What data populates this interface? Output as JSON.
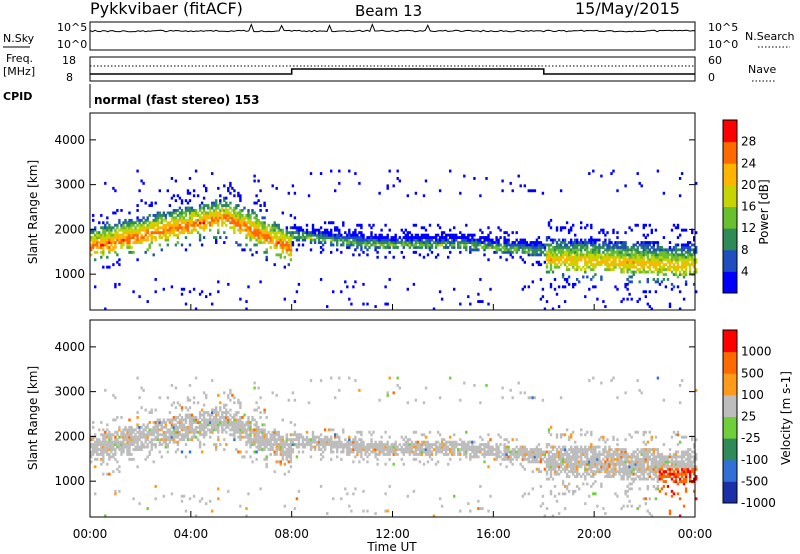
{
  "header": {
    "title": "Pykkvibaer (fitACF)",
    "beam": "Beam 13",
    "date": "15/May/2015"
  },
  "noise_panel": {
    "left_label": "N.Sky",
    "right_label": "N.Search",
    "left_ticks": [
      "10^5",
      "10^0"
    ],
    "right_ticks": [
      "10^5",
      "10^0"
    ]
  },
  "freq_panel": {
    "left_label_1": "Freq.",
    "left_label_2": "[MHz]",
    "left_ticks": [
      "18",
      "8"
    ],
    "right_ticks": [
      "60",
      "0"
    ],
    "right_label": "Nave"
  },
  "cpid_panel": {
    "label": "CPID",
    "text": "normal (fast stereo) 153"
  },
  "axes": {
    "x_label": "Time UT",
    "x_ticks": [
      "00:00",
      "04:00",
      "08:00",
      "12:00",
      "16:00",
      "20:00",
      "00:00"
    ],
    "y_label": "Slant Range [km]",
    "y_ticks": [
      "1000",
      "2000",
      "3000",
      "4000"
    ],
    "y_range_km": [
      200,
      4600
    ]
  },
  "chart_data": [
    {
      "type": "heatmap",
      "parameter": "power",
      "ylabel": "Slant Range [km]",
      "colorbar": {
        "label": "Power [dB]",
        "ticks": [
          "4",
          "8",
          "12",
          "16",
          "20",
          "24",
          "28"
        ],
        "range": [
          0,
          32
        ]
      },
      "bands": [
        {
          "t": [
            0.0,
            8.0
          ],
          "center_km": [
            1700,
            2050,
            2350,
            1650
          ],
          "thickness_km": 600,
          "peak_db": 26
        },
        {
          "t": [
            8.0,
            18.0
          ],
          "center_km": [
            1900,
            1700,
            1700,
            1550
          ],
          "thickness_km": 350,
          "peak_db": 14
        },
        {
          "t": [
            18.0,
            24.0
          ],
          "center_km": [
            1450,
            1400,
            1350,
            1300
          ],
          "thickness_km": 700,
          "peak_db": 22
        }
      ]
    },
    {
      "type": "heatmap",
      "parameter": "velocity",
      "xlabel": "Time UT",
      "ylabel": "Slant Range [km]",
      "colorbar": {
        "label": "Velocity [m s-1]",
        "ticks": [
          "1000",
          "500",
          "100",
          "25",
          "-25",
          "-100",
          "-500",
          "-1000"
        ]
      }
    }
  ],
  "colors": {
    "power_scale": [
      "#0000ff",
      "#1f4fbf",
      "#2e8b57",
      "#6abf2e",
      "#c8d400",
      "#ffb400",
      "#ff6a00",
      "#ff0000"
    ],
    "velocity_scale": [
      "#1a2fa8",
      "#2f6fd6",
      "#2e8b57",
      "#6fcf3a",
      "#bdbdbd",
      "#ff9a1a",
      "#ff6a00",
      "#ff0000"
    ]
  }
}
